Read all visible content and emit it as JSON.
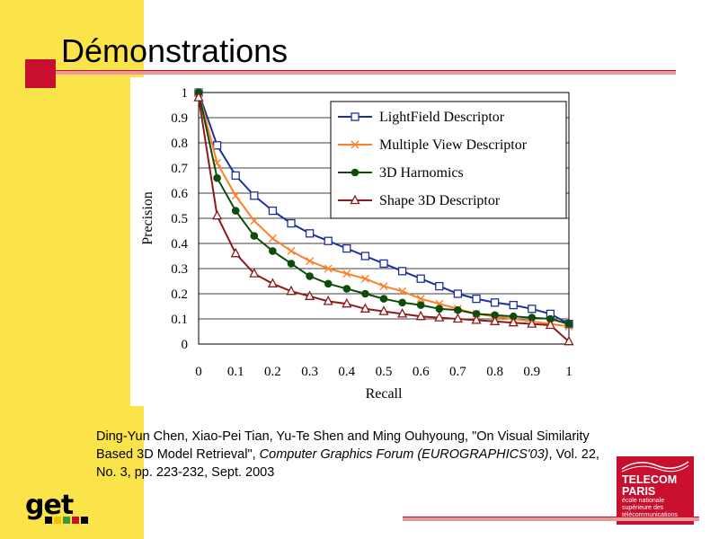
{
  "slide": {
    "title": "Démonstrations"
  },
  "citation": {
    "part1": "Ding-Yun Chen, Xiao-Pei Tian, Yu-Te Shen and Ming Ouhyoung, \"On Visual Similarity Based 3D Model Retrieval\", ",
    "journal": "Computer Graphics Forum (EUROGRAPHICS'03)",
    "part2": ", Vol. 22, No. 3, pp. 223-232, Sept. 2003"
  },
  "logos": {
    "get_text": "get",
    "telecom_name_line1": "TELECOM",
    "telecom_name_line2": "PARIS",
    "telecom_sub_line1": "école nationale",
    "telecom_sub_line2": "supérieure des",
    "telecom_sub_line3": "télécommunications"
  },
  "colors": {
    "sidebar": "#fbe44a",
    "accent_red": "#c8102e"
  },
  "chart_data": {
    "type": "line",
    "title": "",
    "xlabel": "Recall",
    "ylabel": "Precision",
    "xlim": [
      0,
      1
    ],
    "ylim": [
      0,
      1
    ],
    "x_ticks": [
      "0",
      "0.1",
      "0.2",
      "0.3",
      "0.4",
      "0.5",
      "0.6",
      "0.7",
      "0.8",
      "0.9",
      "1"
    ],
    "y_ticks": [
      "0",
      "0.1",
      "0.2",
      "0.3",
      "0.4",
      "0.5",
      "0.6",
      "0.7",
      "0.8",
      "0.9",
      "1"
    ],
    "grid": "horizontal",
    "legend_position": "top-right",
    "x": [
      0,
      0.05,
      0.1,
      0.15,
      0.2,
      0.25,
      0.3,
      0.35,
      0.4,
      0.45,
      0.5,
      0.55,
      0.6,
      0.65,
      0.7,
      0.75,
      0.8,
      0.85,
      0.9,
      0.95,
      1.0
    ],
    "series": [
      {
        "name": "LightField Descriptor",
        "color": "#1f2f9c",
        "marker": "square",
        "values": [
          1.0,
          0.79,
          0.67,
          0.59,
          0.53,
          0.48,
          0.44,
          0.41,
          0.38,
          0.35,
          0.32,
          0.29,
          0.26,
          0.23,
          0.2,
          0.18,
          0.165,
          0.155,
          0.14,
          0.12,
          0.08
        ]
      },
      {
        "name": "Multiple View Descriptor",
        "color": "#ff7f27",
        "marker": "x",
        "values": [
          1.0,
          0.72,
          0.59,
          0.49,
          0.42,
          0.37,
          0.33,
          0.3,
          0.28,
          0.26,
          0.23,
          0.21,
          0.18,
          0.16,
          0.14,
          0.12,
          0.11,
          0.1,
          0.09,
          0.08,
          0.07
        ]
      },
      {
        "name": "3D Harnomics",
        "color": "#0c4d0c",
        "marker": "dot",
        "values": [
          1.0,
          0.66,
          0.53,
          0.43,
          0.37,
          0.32,
          0.27,
          0.24,
          0.22,
          0.2,
          0.18,
          0.165,
          0.155,
          0.14,
          0.135,
          0.12,
          0.115,
          0.11,
          0.105,
          0.1,
          0.08
        ]
      },
      {
        "name": "Shape 3D Descriptor",
        "color": "#8b1a1a",
        "marker": "triangle",
        "values": [
          0.98,
          0.51,
          0.36,
          0.28,
          0.24,
          0.21,
          0.19,
          0.17,
          0.16,
          0.14,
          0.13,
          0.12,
          0.11,
          0.105,
          0.1,
          0.095,
          0.09,
          0.085,
          0.08,
          0.075,
          0.01
        ]
      }
    ]
  }
}
